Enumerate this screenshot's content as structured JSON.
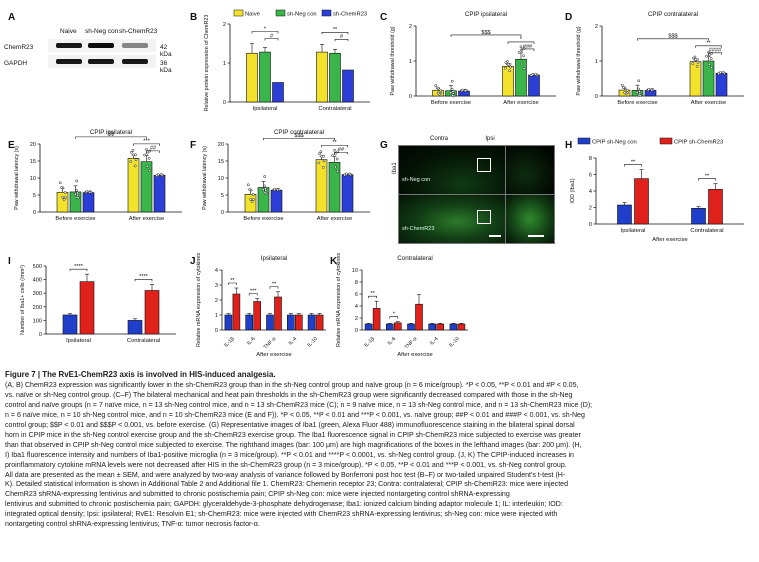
{
  "panel_labels": {
    "A": "A",
    "B": "B",
    "C": "C",
    "D": "D",
    "E": "E",
    "F": "F",
    "G": "G",
    "H": "H",
    "I": "I",
    "J": "J",
    "K": "K"
  },
  "colors": {
    "naive": "#f2e22b",
    "sh_neg_con": "#39b54a",
    "sh_chemr23": "#2b3fd8",
    "h_con": "#1f3ec9",
    "h_chemr23": "#e0201b"
  },
  "panel_a": {
    "lanes": [
      "Naive",
      "sh-Neg con",
      "sh-ChemR23"
    ],
    "rows": [
      {
        "protein": "ChemR23",
        "size": "42 kDa",
        "intensities": [
          0.9,
          0.95,
          0.45
        ]
      },
      {
        "protein": "GAPDH",
        "size": "36 kDa",
        "intensities": [
          0.9,
          0.9,
          0.9
        ]
      }
    ]
  },
  "panel_g": {
    "col_labels": [
      "Contra",
      "Ipsi"
    ],
    "side_label": "Iba1",
    "row_labels": [
      "sh-Neg con",
      "sh-ChemR23"
    ]
  },
  "chart_data": [
    {
      "id": "B",
      "type": "bar",
      "title": "",
      "ylabel": "Relative protein expression of ChemR23",
      "ylim": [
        0,
        2
      ],
      "yticks": [
        "0",
        "1",
        "2"
      ],
      "categories": [
        "Ipsilateral",
        "Contralateral"
      ],
      "legend": [
        "Naive",
        "sh-Neg con",
        "sh-ChemR23"
      ],
      "series": [
        {
          "name": "Naive",
          "values": [
            1.25,
            1.28
          ]
        },
        {
          "name": "sh-Neg con",
          "values": [
            1.28,
            1.25
          ]
        },
        {
          "name": "sh-ChemR23",
          "values": [
            0.5,
            0.82
          ]
        }
      ],
      "annotations": [
        "*",
        "#",
        "**",
        "#"
      ]
    },
    {
      "id": "C",
      "type": "bar",
      "title": "CPIP ipsilateral",
      "ylabel": "Paw withdrawal threshold (g)",
      "ylim": [
        0,
        2
      ],
      "yticks": [
        "0",
        "1",
        "2"
      ],
      "categories": [
        "Before exercise",
        "After exercise"
      ],
      "series": [
        {
          "name": "Naive",
          "values": [
            0.16,
            0.85
          ]
        },
        {
          "name": "sh-Neg con",
          "values": [
            0.15,
            1.05
          ]
        },
        {
          "name": "sh-ChemR23",
          "values": [
            0.14,
            0.6
          ]
        }
      ],
      "annotations": [
        "$$$",
        "*",
        "###"
      ]
    },
    {
      "id": "D",
      "type": "bar",
      "title": "CPIP contralateral",
      "ylabel": "Paw withdrawal threshold (g)",
      "ylim": [
        0,
        2
      ],
      "yticks": [
        "0",
        "1",
        "2"
      ],
      "categories": [
        "Before exercise",
        "After exercise"
      ],
      "series": [
        {
          "name": "Naive",
          "values": [
            0.17,
            0.98
          ]
        },
        {
          "name": "sh-Neg con",
          "values": [
            0.16,
            1.0
          ]
        },
        {
          "name": "sh-ChemR23",
          "values": [
            0.16,
            0.65
          ]
        }
      ],
      "annotations": [
        "$$$",
        "**",
        "####"
      ]
    },
    {
      "id": "E",
      "type": "bar",
      "title": "CPIP ipsilateral",
      "ylabel": "Paw withdrawal latency (s)",
      "ylim": [
        0,
        20
      ],
      "yticks": [
        "0",
        "5",
        "10",
        "15",
        "20"
      ],
      "categories": [
        "Before exercise",
        "After exercise"
      ],
      "series": [
        {
          "name": "Naive",
          "values": [
            5.8,
            15.8
          ]
        },
        {
          "name": "sh-Neg con",
          "values": [
            5.9,
            14.8
          ]
        },
        {
          "name": "sh-ChemR23",
          "values": [
            5.7,
            10.8
          ]
        }
      ],
      "annotations": [
        "$$",
        "***",
        "##"
      ]
    },
    {
      "id": "F",
      "type": "bar",
      "title": "CPIP contralateral",
      "ylabel": "Paw withdrawal latency (s)",
      "ylim": [
        0,
        20
      ],
      "yticks": [
        "0",
        "5",
        "10",
        "15",
        "20"
      ],
      "categories": [
        "Before exercise",
        "After exercise"
      ],
      "series": [
        {
          "name": "Naive",
          "values": [
            5.2,
            15.4
          ]
        },
        {
          "name": "sh-Neg con",
          "values": [
            7.2,
            14.6
          ]
        },
        {
          "name": "sh-ChemR23",
          "values": [
            6.4,
            11.0
          ]
        }
      ],
      "annotations": [
        "$$$",
        "**",
        "##"
      ]
    },
    {
      "id": "H",
      "type": "bar",
      "title": "",
      "ylabel": "IOD (Iba1)",
      "ylim": [
        0,
        8
      ],
      "yticks": [
        "0",
        "2",
        "4",
        "6",
        "8"
      ],
      "categories": [
        "Ipsilateral",
        "Contralateral"
      ],
      "xlabel": "After exercise",
      "legend": [
        "CPIP sh-Neg con",
        "CPIP sh-ChemR23"
      ],
      "series": [
        {
          "name": "CPIP sh-Neg con",
          "values": [
            2.3,
            1.9
          ]
        },
        {
          "name": "CPIP sh-ChemR23",
          "values": [
            5.5,
            4.2
          ]
        }
      ],
      "annotations": [
        "**",
        "**"
      ]
    },
    {
      "id": "I",
      "type": "bar",
      "title": "",
      "ylabel": "Number of Iba1+ cells (/mm²)",
      "ylim": [
        0,
        500
      ],
      "yticks": [
        "0",
        "100",
        "200",
        "300",
        "400",
        "500"
      ],
      "categories": [
        "Ipsilateral",
        "Contralateral"
      ],
      "series": [
        {
          "name": "CPIP sh-Neg con",
          "values": [
            140,
            100
          ]
        },
        {
          "name": "CPIP sh-ChemR23",
          "values": [
            385,
            320
          ]
        }
      ],
      "annotations": [
        "****",
        "****"
      ]
    },
    {
      "id": "J",
      "type": "bar",
      "title": "Ipsilateral",
      "ylabel": "Relative mRNA expression of cytokines",
      "ylim": [
        0,
        4
      ],
      "yticks": [
        "0",
        "1",
        "2",
        "3",
        "4"
      ],
      "categories": [
        "IL-1β",
        "IL-6",
        "TNF-α",
        "IL-4",
        "IL-10"
      ],
      "xlabel": "After exercise",
      "series": [
        {
          "name": "CPIP sh-Neg con",
          "values": [
            1.0,
            1.0,
            1.0,
            1.0,
            1.0
          ]
        },
        {
          "name": "CPIP sh-ChemR23",
          "values": [
            2.4,
            1.9,
            2.2,
            1.0,
            1.0
          ]
        }
      ],
      "annotations": [
        "**",
        "***",
        "**"
      ]
    },
    {
      "id": "K",
      "type": "bar",
      "title": "Contralateral",
      "ylabel": "Relative mRNA expression of cytokines",
      "ylim": [
        0,
        10
      ],
      "yticks": [
        "0",
        "2",
        "4",
        "6",
        "8",
        "10"
      ],
      "categories": [
        "IL-1β",
        "IL-6",
        "TNF-α",
        "IL-4",
        "IL-10"
      ],
      "xlabel": "After exercise",
      "series": [
        {
          "name": "CPIP sh-Neg con",
          "values": [
            1.0,
            1.0,
            1.0,
            1.0,
            1.0
          ]
        },
        {
          "name": "CPIP sh-ChemR23",
          "values": [
            3.6,
            1.2,
            4.3,
            1.0,
            1.0
          ]
        }
      ],
      "annotations": [
        "**",
        "*"
      ]
    }
  ],
  "caption": {
    "title": "Figure 7 | The RvE1-ChemR23 axis is involved in HIS-induced analgesia.",
    "lines": [
      "(A, B) ChemR23 expression was significantly lower in the sh-ChemR23 group than in the sh-Neg control group and naïve group (n = 6 mice/group). *P < 0.05, **P < 0.01 and #P < 0.05,",
      "vs. naïve or sh-Neg control group. (C–F) The bilateral mechanical and heat pain thresholds in the sh-ChemR23 group were significantly decreased compared with those in the sh-Neg",
      "control and naïve groups (n = 7 naïve mice, n = 13 sh-Neg control mice, and n = 13 sh-ChemR23 mice (C); n = 9 naïve mice, n = 13 sh-Neg control mice, and n = 13 sh-ChemR23 mice (D);",
      "n = 6 naïve mice, n = 10 sh-Neg control mice, and n = 10 sh-ChemR23 mice (E and F)). *P < 0.05, **P < 0.01 and ***P < 0.001, vs. naïve group; ##P < 0.01 and ###P < 0.001, vs. sh-Neg",
      "control group; $$P < 0.01 and $$$P < 0.001, vs. before exercise. (G) Representative images of Iba1 (green, Alexa Fluor 488) immunofluorescence staining in the bilateral spinal dorsal",
      "horn in CPIP mice in the sh-Neg control exercise group and the sh-ChemR23 exercise group. The Iba1 fluorescence signal in CPIP sh-ChemR23 mice subjected to exercise was greater",
      "than that observed in CPIP sh-Neg control mice subjected to exercise. The righthand images (bar: 100 μm) are high magnifications of the boxes in the lefthand images (bar: 200 μm). (H,",
      "I) Iba1 fluorescence intensity and numbers of Iba1-positive microglia (n = 3 mice/group). **P < 0.01 and ****P < 0.0001, vs. sh-Neg control group. (J, K) The CPIP-induced increases in",
      "proinflammatory cytokine mRNA levels were not decreased after HIS in the sh-ChemR23 group (n = 3 mice/group). *P < 0.05, **P < 0.01 and ***P < 0.001, vs. sh-Neg control group.",
      "All data are presented as the mean ± SEM, and were analyzed by two-way analysis of variance followed by Bonferroni post hoc test (B–F) or two-tailed unpaired Student's t-test (H-",
      "K). Detailed statistical information is shown in Additional Table 2 and Additional file 1. ChemR23: Chemerin receptor 23; Contra: contralateral; CPIP sh-ChemR23: mice were injected",
      "ChemR23 shRNA-expressing lentivirus and submitted to chronic postischemia pain; CPIP sh-Neg con: mice were injected nontargeting control shRNA-expressing",
      "lentivirus and submitted to chronic postischemia pain; GAPDH: glyceraldehyde-3-phosphate dehydrogenase; Iba1: ionized calcium binding adaptor molecule 1; IL: interleukin; IOD:",
      "integrated optical density; Ipsi: ipsilateral; RvE1: Resolvin E1; sh-ChemR23: mice were injected with ChemR23 shRNA-expressing lentivirus; sh-Neg con: mice were injected with",
      "nontargeting control shRNA-expressing lentivirus; TNF-α: tumor necrosis factor-α."
    ]
  }
}
